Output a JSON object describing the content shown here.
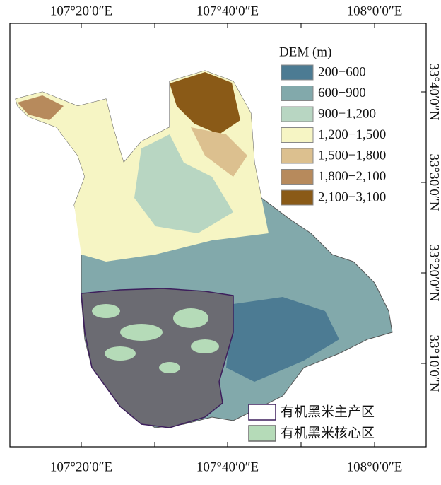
{
  "map": {
    "x_labels": [
      "107°20′0″E",
      "107°40′0″E",
      "108°0′0″E"
    ],
    "y_labels": [
      "33°40′0″N",
      "33°30′0″N",
      "33°20′0″N",
      "33°10′0″N"
    ],
    "legend": {
      "title": "DEM (m)",
      "items": [
        {
          "label": "200−600",
          "color": "#4c7b93"
        },
        {
          "label": "600−900",
          "color": "#82a9ab"
        },
        {
          "label": "900−1,200",
          "color": "#b8d6c2"
        },
        {
          "label": "1,200−1,500",
          "color": "#f6f5c4"
        },
        {
          "label": "1,500−1,800",
          "color": "#dcc08f"
        },
        {
          "label": "1,800−2,100",
          "color": "#b78a5c"
        },
        {
          "label": "2,100−3,100",
          "color": "#8a5a17"
        }
      ]
    },
    "zones": [
      {
        "label": "有机黑米主产区",
        "color": "#ffffff",
        "border": "#3d1f5c"
      },
      {
        "label": "有机黑米核心区",
        "color": "#b5dbb8",
        "border": "#6a6a6a"
      }
    ]
  }
}
